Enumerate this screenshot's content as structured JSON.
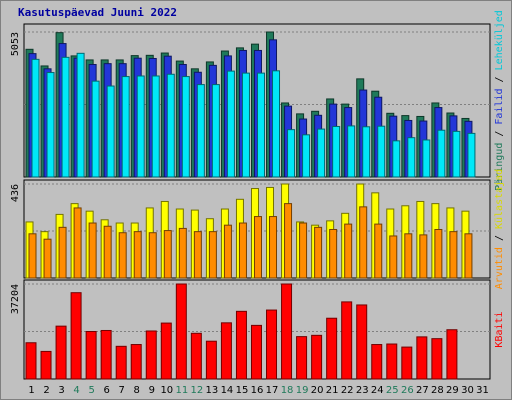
{
  "chart_data": {
    "type": "bar",
    "title": "Kasutuspäevad Juuni 2022",
    "categories": [
      "1",
      "2",
      "3",
      "4",
      "5",
      "6",
      "7",
      "8",
      "9",
      "10",
      "11",
      "12",
      "13",
      "14",
      "15",
      "16",
      "17",
      "18",
      "19",
      "20",
      "21",
      "22",
      "23",
      "24",
      "25",
      "26",
      "27",
      "28",
      "29",
      "30",
      "31"
    ],
    "weekend_categories": [
      "4",
      "5",
      "11",
      "12",
      "18",
      "19",
      "25",
      "26"
    ],
    "panels": [
      {
        "id": "top",
        "y_max_label": "5053",
        "ylim": [
          0,
          5053
        ],
        "series": [
          {
            "name": "Päringud",
            "color": "#1f7a5a",
            "values": [
              4450,
              3870,
              5030,
              4220,
              4080,
              4080,
              4080,
              4230,
              4240,
              4320,
              4040,
              3770,
              4010,
              4390,
              4500,
              4630,
              5053,
              2580,
              2200,
              2290,
              2720,
              2540,
              3420,
              2990,
              2220,
              2140,
              2110,
              2580,
              2230,
              2040,
              null
            ]
          },
          {
            "name": "Failid",
            "color": "#2236d8",
            "values": [
              4300,
              3770,
              4650,
              4140,
              3920,
              3950,
              3950,
              4140,
              4130,
              4210,
              3920,
              3650,
              3890,
              4220,
              4410,
              4410,
              4780,
              2470,
              2020,
              2150,
              2540,
              2420,
              3030,
              2780,
              2120,
              1970,
              1950,
              2420,
              2130,
              1940,
              null
            ]
          },
          {
            "name": "Leheküljed",
            "color": "#00e8f8",
            "values": [
              4100,
              3640,
              4170,
              4310,
              3340,
              3170,
              3500,
              3520,
              3520,
              3580,
              3500,
              3220,
              3220,
              3690,
              3620,
              3620,
              3700,
              1650,
              1470,
              1670,
              1760,
              1780,
              1750,
              1770,
              1260,
              1370,
              1290,
              1630,
              1590,
              1520,
              null
            ]
          }
        ]
      },
      {
        "id": "middle",
        "y_max_label": "436",
        "ylim": [
          0,
          436
        ],
        "series": [
          {
            "name": "Külastajad",
            "color": "#ffff00",
            "values": [
              260,
              215,
              295,
              345,
              310,
              270,
              255,
              255,
              325,
              355,
              320,
              315,
              275,
              320,
              365,
              415,
              420,
              436,
              260,
              245,
              265,
              300,
              436,
              395,
              320,
              335,
              355,
              345,
              325,
              310,
              null
            ]
          },
          {
            "name": "Arvutid",
            "color": "#ff8c00",
            "values": [
              205,
              180,
              235,
              325,
              255,
              240,
              210,
              215,
              210,
              220,
              230,
              215,
              215,
              245,
              255,
              285,
              285,
              345,
              255,
              235,
              225,
              250,
              330,
              250,
              195,
              205,
              200,
              225,
              215,
              205,
              null
            ]
          }
        ]
      },
      {
        "id": "bottom",
        "y_max_label": "37204",
        "ylim": [
          0,
          37204
        ],
        "series": [
          {
            "name": "KBaiti",
            "color": "#ff0000",
            "values": [
              14200,
              10800,
              20700,
              33800,
              18600,
              19000,
              12800,
              13500,
              18800,
              21900,
              37204,
              17900,
              14800,
              22000,
              26500,
              21000,
              27000,
              37204,
              16600,
              17100,
              23800,
              30200,
              29000,
              13500,
              13700,
              12500,
              16500,
              15800,
              19300,
              null,
              null
            ]
          }
        ]
      }
    ],
    "side_labels": {
      "top": [
        {
          "text": "Päringud",
          "color": "#1f7a5a"
        },
        {
          "text": " / ",
          "color": "#000000"
        },
        {
          "text": "Failid",
          "color": "#2236d8"
        },
        {
          "text": " / ",
          "color": "#000000"
        },
        {
          "text": "Leheküljed",
          "color": "#00c8d8"
        }
      ],
      "middle": [
        {
          "text": "Arvutid",
          "color": "#ff8c00"
        },
        {
          "text": " / ",
          "color": "#000000"
        },
        {
          "text": "Külastajad",
          "color": "#d8d800"
        }
      ],
      "bottom": [
        {
          "text": "KBaiti",
          "color": "#ff0000"
        }
      ]
    }
  }
}
